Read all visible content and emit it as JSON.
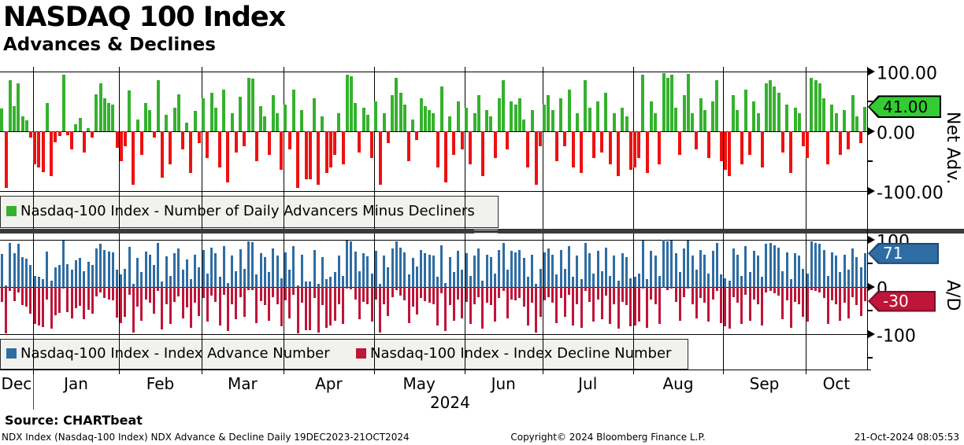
{
  "header": {
    "title": "NASDAQ 100 Index",
    "subtitle": "Advances & Declines"
  },
  "colors": {
    "net_positive": "#35b12e",
    "net_negative": "#ee1111",
    "advance_blue": "#2e6da4",
    "decline_crimson": "#bf1538",
    "badge_green": "#33cc33",
    "separator_gray": "#3a3a3a",
    "legend_background": "#f1f1ee"
  },
  "legend_top": {
    "label": "Nasdaq-100 Index - Number of Daily Advancers Minus Decliners"
  },
  "legend_bottom": {
    "advance_label": "Nasdaq-100 Index - Index Advance Number",
    "decline_label": "Nasdaq-100 Index - Index Decline Number"
  },
  "right_axis": {
    "net": {
      "title": "Net Adv.",
      "ticks": [
        "100.00",
        "0.00",
        "-100.00"
      ],
      "tick_values": [
        100,
        0,
        -100
      ],
      "badge": "41.00"
    },
    "ad": {
      "title": "A/D",
      "ticks": [
        "100",
        "0",
        "-100"
      ],
      "tick_values": [
        100,
        0,
        -100
      ],
      "badge_advance": "71",
      "badge_decline": "-30"
    }
  },
  "x_axis": {
    "months": [
      {
        "label": "Dec",
        "days": 8
      },
      {
        "label": "Jan",
        "days": 21
      },
      {
        "label": "Feb",
        "days": 20
      },
      {
        "label": "Mar",
        "days": 20
      },
      {
        "label": "Apr",
        "days": 22
      },
      {
        "label": "May",
        "days": 22
      },
      {
        "label": "Jun",
        "days": 19
      },
      {
        "label": "Jul",
        "days": 22
      },
      {
        "label": "Aug",
        "days": 22
      },
      {
        "label": "Sep",
        "days": 20
      },
      {
        "label": "Oct",
        "days": 15
      }
    ],
    "year": "2024"
  },
  "footer": {
    "source": "Source: CHARTbeat",
    "left": "NDX Index (Nasdaq-100 Index) NDX Advance & Decline  Daily 19DEC2023-21OCT2024",
    "center": "Copyright© 2024 Bloomberg Finance L.P.",
    "right": "21-Oct-2024 08:05:53"
  },
  "chart_data": [
    {
      "type": "bar",
      "panel": "net-advances",
      "name": "Nasdaq-100 Index - Number of Daily Advancers Minus Decliners",
      "ylabel": "Net Adv.",
      "ylim": [
        -100,
        100
      ],
      "yticks": [
        100,
        0,
        -100
      ],
      "grid": "monthly-vertical",
      "legend_position": "bottom-left-inset",
      "last_value": 41,
      "values": [
        38,
        -95,
        85,
        42,
        80,
        25,
        18,
        -10,
        -55,
        -60,
        -68,
        48,
        -75,
        -18,
        -8,
        95,
        -6,
        -30,
        12,
        22,
        -35,
        5,
        -10,
        62,
        80,
        55,
        48,
        45,
        -28,
        -50,
        -25,
        68,
        -90,
        20,
        -40,
        48,
        36,
        -10,
        85,
        -78,
        28,
        -55,
        40,
        62,
        -30,
        15,
        -70,
        34,
        -20,
        55,
        -45,
        65,
        40,
        -60,
        70,
        -85,
        30,
        -35,
        58,
        -25,
        90,
        88,
        -50,
        42,
        25,
        -40,
        60,
        30,
        -65,
        45,
        -30,
        70,
        -95,
        35,
        -80,
        -80,
        55,
        -90,
        25,
        -70,
        -60,
        -40,
        30,
        -55,
        95,
        92,
        48,
        -35,
        40,
        28,
        -45,
        50,
        -90,
        30,
        -20,
        60,
        90,
        65,
        45,
        -50,
        20,
        -15,
        55,
        42,
        35,
        30,
        -60,
        75,
        -85,
        25,
        -40,
        50,
        -30,
        40,
        -55,
        30,
        60,
        -75,
        35,
        25,
        -45,
        55,
        85,
        -30,
        50,
        45,
        55,
        20,
        -60,
        35,
        -90,
        -25,
        45,
        60,
        35,
        -50,
        55,
        -25,
        70,
        -60,
        30,
        -70,
        85,
        40,
        -45,
        50,
        -35,
        65,
        -55,
        30,
        -75,
        40,
        25,
        -65,
        -60,
        -45,
        95,
        -70,
        50,
        30,
        -55,
        98,
        90,
        95,
        40,
        -40,
        60,
        96,
        30,
        -30,
        55,
        35,
        -45,
        50,
        85,
        -50,
        -65,
        -75,
        60,
        35,
        -55,
        70,
        -40,
        50,
        30,
        -60,
        80,
        85,
        75,
        65,
        -35,
        45,
        -70,
        40,
        30,
        -25,
        -45,
        90,
        85,
        80,
        55,
        -55,
        45,
        30,
        -40,
        35,
        -30,
        60,
        25,
        -20,
        41
      ]
    },
    {
      "type": "bar",
      "panel": "advance-decline",
      "ylabel": "A/D",
      "ylim": [
        -100,
        100
      ],
      "yticks": [
        100,
        0,
        -100
      ],
      "grid": "monthly-vertical",
      "legend_position": "bottom-left-inset",
      "series": [
        {
          "name": "Nasdaq-100 Index - Index Advance Number",
          "last_value": 71,
          "values": [
            70,
            3,
            93,
            72,
            91,
            63,
            60,
            46,
            23,
            21,
            17,
            75,
            13,
            42,
            47,
            98,
            48,
            36,
            57,
            62,
            33,
            53,
            46,
            82,
            91,
            78,
            75,
            73,
            37,
            26,
            38,
            85,
            6,
            61,
            31,
            75,
            69,
            46,
            93,
            12,
            65,
            23,
            71,
            82,
            36,
            58,
            16,
            68,
            41,
            78,
            28,
            83,
            71,
            21,
            86,
            8,
            66,
            33,
            80,
            38,
            96,
            95,
            26,
            72,
            63,
            31,
            81,
            66,
            18,
            73,
            36,
            86,
            3,
            68,
            11,
            11,
            78,
            6,
            63,
            16,
            21,
            31,
            66,
            23,
            98,
            97,
            75,
            33,
            71,
            65,
            28,
            76,
            6,
            66,
            41,
            81,
            96,
            83,
            73,
            26,
            61,
            43,
            78,
            72,
            68,
            66,
            21,
            88,
            8,
            63,
            31,
            76,
            36,
            71,
            23,
            66,
            81,
            13,
            68,
            63,
            28,
            78,
            93,
            36,
            76,
            73,
            78,
            61,
            21,
            68,
            6,
            38,
            73,
            81,
            68,
            26,
            78,
            38,
            86,
            21,
            66,
            16,
            93,
            71,
            28,
            76,
            33,
            83,
            23,
            66,
            13,
            71,
            63,
            18,
            21,
            28,
            98,
            16,
            76,
            66,
            23,
            100,
            96,
            98,
            71,
            31,
            81,
            99,
            66,
            36,
            78,
            68,
            28,
            76,
            93,
            26,
            18,
            13,
            81,
            68,
            23,
            86,
            31,
            76,
            66,
            21,
            91,
            93,
            88,
            83,
            33,
            73,
            16,
            71,
            66,
            38,
            28,
            96,
            93,
            91,
            78,
            23,
            73,
            66,
            31,
            68,
            36,
            81,
            63,
            41,
            71
          ]
        },
        {
          "name": "Nasdaq-100 Index - Index Decline Number",
          "last_value": -30,
          "values": [
            -32,
            -98,
            -8,
            -30,
            -11,
            -38,
            -42,
            -56,
            -78,
            -81,
            -85,
            -27,
            -88,
            -60,
            -55,
            -3,
            -54,
            -66,
            -45,
            -40,
            -68,
            -48,
            -56,
            -20,
            -11,
            -23,
            -27,
            -28,
            -65,
            -76,
            -63,
            -17,
            -96,
            -41,
            -71,
            -27,
            -33,
            -56,
            -8,
            -90,
            -37,
            -78,
            -31,
            -20,
            -66,
            -43,
            -86,
            -34,
            -61,
            -23,
            -73,
            -18,
            -31,
            -81,
            -16,
            -93,
            -36,
            -68,
            -22,
            -63,
            -6,
            -7,
            -76,
            -30,
            -38,
            -71,
            -21,
            -36,
            -83,
            -28,
            -66,
            -16,
            -98,
            -33,
            -91,
            -91,
            -23,
            -96,
            -38,
            -86,
            -81,
            -71,
            -36,
            -78,
            -3,
            -5,
            -27,
            -68,
            -31,
            -37,
            -73,
            -26,
            -96,
            -36,
            -61,
            -21,
            -6,
            -18,
            -28,
            -76,
            -41,
            -58,
            -23,
            -30,
            -33,
            -36,
            -81,
            -13,
            -93,
            -38,
            -71,
            -26,
            -66,
            -31,
            -78,
            -36,
            -21,
            -88,
            -33,
            -38,
            -73,
            -23,
            -8,
            -66,
            -26,
            -28,
            -23,
            -41,
            -81,
            -33,
            -96,
            -63,
            -28,
            -21,
            -33,
            -76,
            -23,
            -63,
            -16,
            -81,
            -36,
            -86,
            -8,
            -31,
            -73,
            -26,
            -68,
            -18,
            -78,
            -36,
            -88,
            -31,
            -38,
            -83,
            -81,
            -73,
            -3,
            -86,
            -26,
            -36,
            -78,
            -2,
            -6,
            -3,
            -31,
            -71,
            -21,
            -3,
            -36,
            -66,
            -23,
            -33,
            -73,
            -26,
            -8,
            -76,
            -83,
            -88,
            -21,
            -33,
            -78,
            -16,
            -71,
            -26,
            -36,
            -81,
            -11,
            -8,
            -13,
            -18,
            -68,
            -28,
            -86,
            -31,
            -36,
            -63,
            -73,
            -6,
            -8,
            -11,
            -23,
            -78,
            -28,
            -36,
            -71,
            -33,
            -66,
            -21,
            -38,
            -61,
            -30
          ]
        }
      ]
    }
  ]
}
